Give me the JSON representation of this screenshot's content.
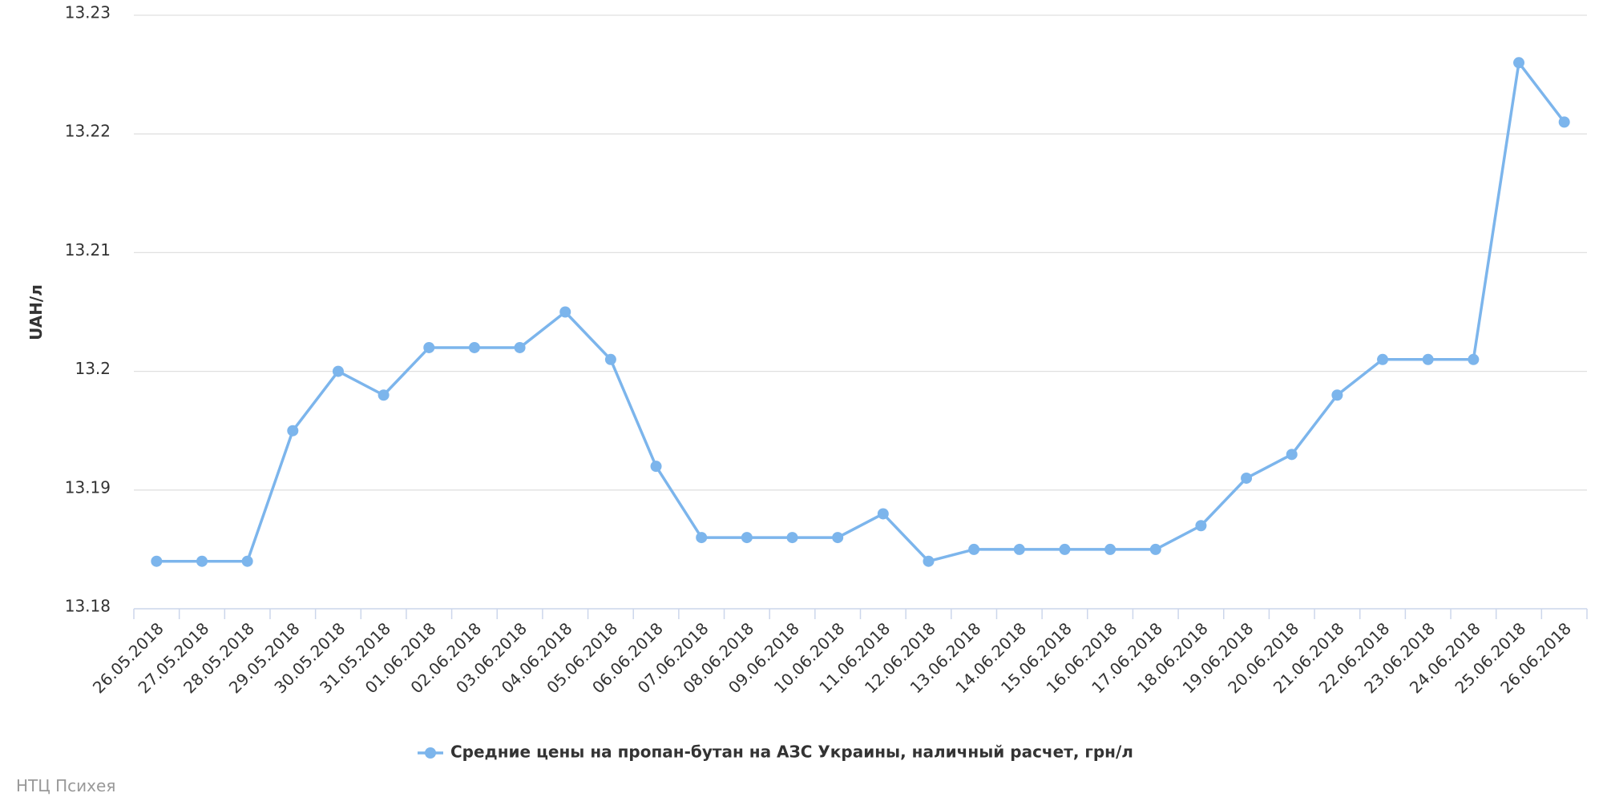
{
  "chart_data": {
    "type": "line",
    "y_label": "UAH/л",
    "categories": [
      "26.05.2018",
      "27.05.2018",
      "28.05.2018",
      "29.05.2018",
      "30.05.2018",
      "31.05.2018",
      "01.06.2018",
      "02.06.2018",
      "03.06.2018",
      "04.06.2018",
      "05.06.2018",
      "06.06.2018",
      "07.06.2018",
      "08.06.2018",
      "09.06.2018",
      "10.06.2018",
      "11.06.2018",
      "12.06.2018",
      "13.06.2018",
      "14.06.2018",
      "15.06.2018",
      "16.06.2018",
      "17.06.2018",
      "18.06.2018",
      "19.06.2018",
      "20.06.2018",
      "21.06.2018",
      "22.06.2018",
      "23.06.2018",
      "24.06.2018",
      "25.06.2018",
      "26.06.2018"
    ],
    "series": [
      {
        "name": "Средние цены на пропан-бутан на АЗС Украины, наличный расчет, грн/л",
        "color": "#7cb5ec",
        "values": [
          13.184,
          13.184,
          13.184,
          13.195,
          13.2,
          13.198,
          13.202,
          13.202,
          13.202,
          13.205,
          13.201,
          13.192,
          13.186,
          13.186,
          13.186,
          13.186,
          13.188,
          13.184,
          13.185,
          13.185,
          13.185,
          13.185,
          13.185,
          13.187,
          13.191,
          13.193,
          13.198,
          13.201,
          13.201,
          13.201,
          13.226,
          13.221
        ]
      }
    ],
    "ylim": [
      13.18,
      13.23
    ],
    "yticks": [
      13.18,
      13.19,
      13.2,
      13.21,
      13.22,
      13.23
    ],
    "grid": true,
    "credit": "НТЦ Психея"
  }
}
